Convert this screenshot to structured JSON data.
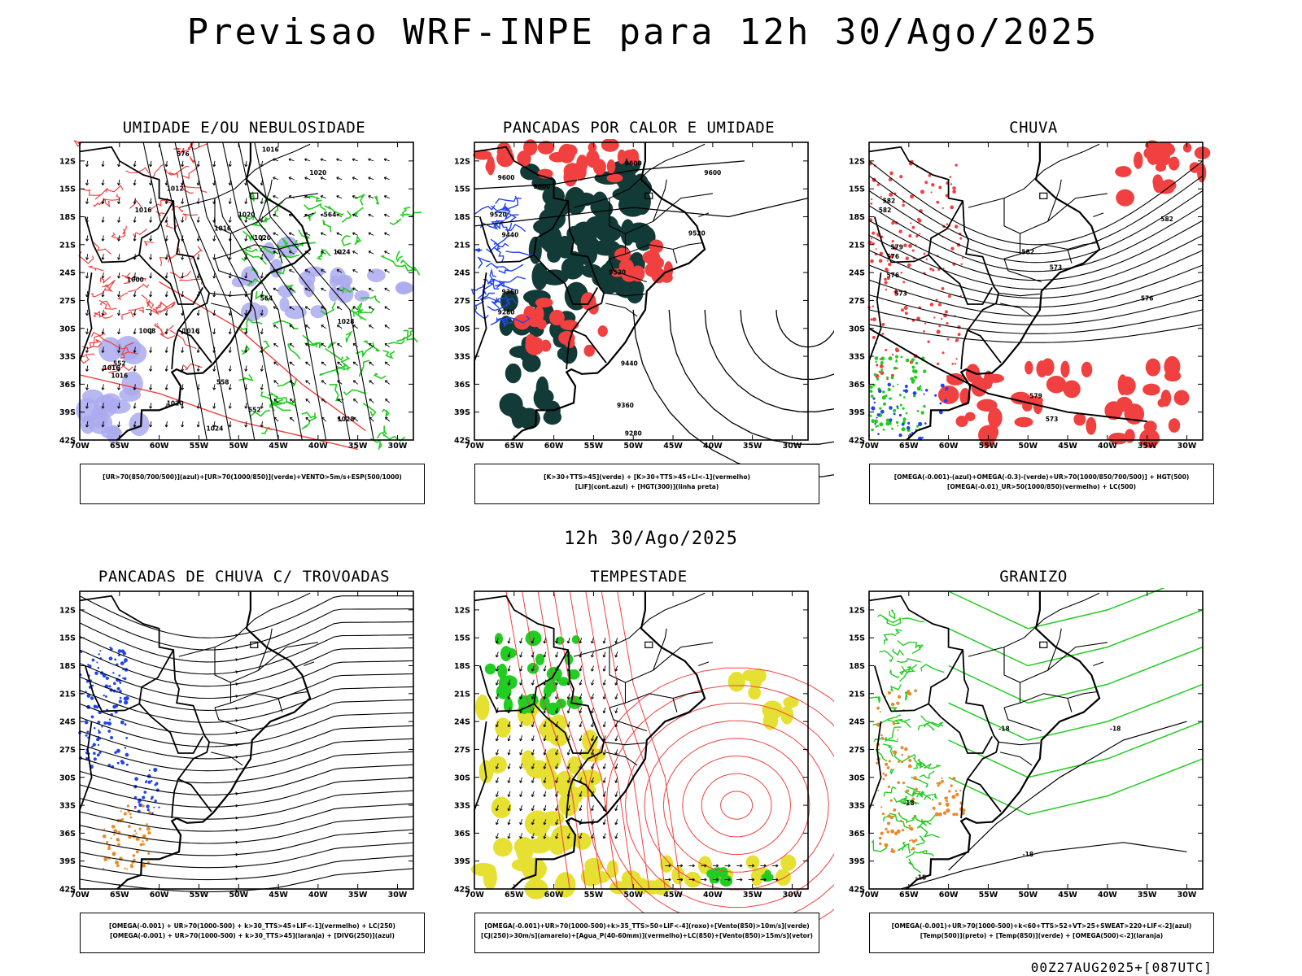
{
  "title": "Previsao WRF-INPE  para 12h 30/Ago/2025",
  "subtitle": "12h 30/Ago/2025",
  "footer": "00Z27AUG2025+[087UTC]",
  "axes": {
    "lat_ticks": [
      "12S",
      "15S",
      "18S",
      "21S",
      "24S",
      "27S",
      "30S",
      "33S",
      "36S",
      "39S",
      "42S"
    ],
    "lon_ticks": [
      "70W",
      "65W",
      "60W",
      "55W",
      "50W",
      "45W",
      "40W",
      "35W",
      "30W"
    ]
  },
  "colors": {
    "red": "#f04040",
    "green": "#22cc22",
    "blue": "#2244ee",
    "lavender": "#aaaaee",
    "darkgreen": "#123a36",
    "yellow": "#e6e032",
    "orange": "#e88a2a",
    "black": "#000000"
  },
  "chart_data": [
    {
      "type": "heatmap",
      "title": "UMIDADE E/OU NEBULOSIDADE",
      "xlabel": "",
      "ylabel": "",
      "xlim": [
        -70,
        -28
      ],
      "ylim": [
        -42,
        -10
      ],
      "legend_lines": [
        "[UR>70(850/700/500)](azul)+[UR>70(1000/850)](verde)+VENTO>5m/s+ESP(500/1000)"
      ],
      "contour_labels": [
        {
          "text": "1016",
          "lon": -46,
          "lat": -11
        },
        {
          "text": "1012",
          "lon": -58,
          "lat": -15.2
        },
        {
          "text": "1020",
          "lon": -40,
          "lat": -13.5
        },
        {
          "text": "1020",
          "lon": -49,
          "lat": -18
        },
        {
          "text": "1020",
          "lon": -47,
          "lat": -20.5
        },
        {
          "text": "1016",
          "lon": -52,
          "lat": -19.5
        },
        {
          "text": "1016",
          "lon": -62,
          "lat": -17.5
        },
        {
          "text": "1024",
          "lon": -37,
          "lat": -22
        },
        {
          "text": "1000",
          "lon": -63,
          "lat": -25
        },
        {
          "text": "1008",
          "lon": -61.5,
          "lat": -30.5
        },
        {
          "text": "1016",
          "lon": -56,
          "lat": -30.5
        },
        {
          "text": "1028",
          "lon": -36.5,
          "lat": -29.5
        },
        {
          "text": "1016",
          "lon": -66,
          "lat": -34.5
        },
        {
          "text": "1016",
          "lon": -65,
          "lat": -35.3
        },
        {
          "text": "1020",
          "lon": -58,
          "lat": -38.3
        },
        {
          "text": "1024",
          "lon": -53,
          "lat": -41
        },
        {
          "text": "1028",
          "lon": -36.5,
          "lat": -40
        },
        {
          "text": "576",
          "lon": -57,
          "lat": -11.5
        },
        {
          "text": "564",
          "lon": -38.5,
          "lat": -18
        },
        {
          "text": "564",
          "lon": -46.5,
          "lat": -27
        },
        {
          "text": "552",
          "lon": -65,
          "lat": -34
        },
        {
          "text": "558",
          "lon": -52,
          "lat": -36
        },
        {
          "text": "552",
          "lon": -48,
          "lat": -39
        }
      ]
    },
    {
      "type": "heatmap",
      "title": "PANCADAS POR CALOR E UMIDADE",
      "xlabel": "",
      "ylabel": "",
      "xlim": [
        -70,
        -28
      ],
      "ylim": [
        -42,
        -10
      ],
      "legend_lines": [
        "[K>30+TTS>45](verde)  +  [K>30+TTS>45+LI<-1](vermelho)",
        "[LIF](cont.azul)  +  [HGT(300)](linha preta)"
      ],
      "contour_labels": [
        {
          "text": "9600",
          "lon": -66,
          "lat": -14
        },
        {
          "text": "9600",
          "lon": -61.5,
          "lat": -15
        },
        {
          "text": "9600",
          "lon": -50,
          "lat": -12.5
        },
        {
          "text": "9600",
          "lon": -40,
          "lat": -13.5
        },
        {
          "text": "9520",
          "lon": -67,
          "lat": -18
        },
        {
          "text": "9440",
          "lon": -65.5,
          "lat": -20.2
        },
        {
          "text": "9520",
          "lon": -52,
          "lat": -24.2
        },
        {
          "text": "9520",
          "lon": -42,
          "lat": -20
        },
        {
          "text": "9360",
          "lon": -65.5,
          "lat": -26.3
        },
        {
          "text": "9280",
          "lon": -66,
          "lat": -28.5
        },
        {
          "text": "9440",
          "lon": -50.5,
          "lat": -34
        },
        {
          "text": "9360",
          "lon": -51,
          "lat": -38.5
        },
        {
          "text": "9280",
          "lon": -50,
          "lat": -41.5
        }
      ]
    },
    {
      "type": "heatmap",
      "title": "CHUVA",
      "xlabel": "",
      "ylabel": "",
      "xlim": [
        -70,
        -28
      ],
      "ylim": [
        -42,
        -10
      ],
      "legend_lines": [
        "[OMEGA(-0.001)-(azul)+OMEGA(-0.3)-(verde)+UR>70(1000/850/700/500)]  +  HGT(500)",
        "[OMEGA(-0.01)_UR>50(1000/850)(vermelho)  +  LC(500)"
      ],
      "contour_labels": [
        {
          "text": "582",
          "lon": -67.5,
          "lat": -16.5
        },
        {
          "text": "582",
          "lon": -68,
          "lat": -17.5
        },
        {
          "text": "582",
          "lon": -50,
          "lat": -22
        },
        {
          "text": "582",
          "lon": -32.5,
          "lat": -18.5
        },
        {
          "text": "579",
          "lon": -66.5,
          "lat": -21.5
        },
        {
          "text": "576",
          "lon": -67,
          "lat": -22.5
        },
        {
          "text": "576",
          "lon": -67,
          "lat": -24.5
        },
        {
          "text": "573",
          "lon": -66,
          "lat": -26.5
        },
        {
          "text": "573",
          "lon": -46.5,
          "lat": -23.7
        },
        {
          "text": "576",
          "lon": -35,
          "lat": -27
        },
        {
          "text": "579",
          "lon": -49,
          "lat": -37.5
        },
        {
          "text": "573",
          "lon": -47,
          "lat": -40
        }
      ]
    },
    {
      "type": "heatmap",
      "title": "PANCADAS DE CHUVA C/ TROVOADAS",
      "xlabel": "",
      "ylabel": "",
      "xlim": [
        -70,
        -28
      ],
      "ylim": [
        -42,
        -10
      ],
      "legend_lines": [
        "[OMEGA(-0.001)  +  UR>70(1000-500)  +  k>30_TTS>45+LIF<-1](vermelho)  +  LC(250)",
        "[OMEGA(-0.001)  +  UR>70(1000-500)  +  k>30_TTS>45](laranja)  +  [DIVG(250)](azul)"
      ],
      "contour_labels": []
    },
    {
      "type": "heatmap",
      "title": "TEMPESTADE",
      "xlabel": "",
      "ylabel": "",
      "xlim": [
        -70,
        -28
      ],
      "ylim": [
        -42,
        -10
      ],
      "legend_lines": [
        "[OMEGA(-0.001)+UR>70(1000-500)+k>35_TTS>50+LIF<-4](roxo)+[Vento(850)>10m/s](verde)",
        "[CJ(250)>30m/s](amarelo)+[Agua_P(40-60mm)](vermelho)+LC(850)+[Vento(850)>15m/s](vetor)"
      ],
      "contour_labels": []
    },
    {
      "type": "heatmap",
      "title": "GRANIZO",
      "xlabel": "",
      "ylabel": "",
      "xlim": [
        -70,
        -28
      ],
      "ylim": [
        -42,
        -10
      ],
      "legend_lines": [
        "[OMEGA(-0.001)+UR>70(1000-500)+k<60+TTS>52+VT>25+SWEAT>220+LIF<-2](azul)",
        "[Temp(500)](preto)  +  [Temp(850)](verde)  +  [OMEGA(500)<-2](laranja)"
      ],
      "contour_labels": [
        {
          "text": "-18",
          "lon": -39,
          "lat": -25
        },
        {
          "text": "-18",
          "lon": -53,
          "lat": -25
        },
        {
          "text": "-18",
          "lon": -65,
          "lat": -33
        },
        {
          "text": "-18",
          "lon": -50,
          "lat": -38.5
        },
        {
          "text": "-18",
          "lon": -63.5,
          "lat": -41
        }
      ]
    }
  ]
}
